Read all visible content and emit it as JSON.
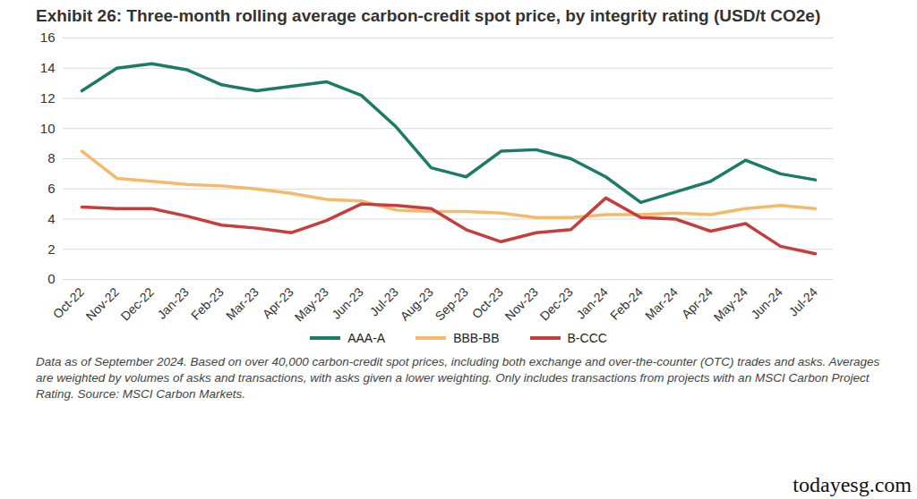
{
  "chart_data": {
    "type": "line",
    "title": "Exhibit 26: Three-month rolling average carbon-credit spot price, by integrity rating (USD/t CO2e)",
    "caption": "Data as of September 2024. Based on over 40,000 carbon-credit spot prices, including both exchange and over-the-counter (OTC) trades and asks. Averages are weighted by volumes of asks and transactions, with asks given a lower weighting. Only includes transactions from projects with an MSCI Carbon Project Rating. Source: MSCI Carbon Markets.",
    "watermark": "todayesg.com",
    "categories": [
      "Oct-22",
      "Nov-22",
      "Dec-22",
      "Jan-23",
      "Feb-23",
      "Mar-23",
      "Apr-23",
      "May-23",
      "Jun-23",
      "Jul-23",
      "Aug-23",
      "Sep-23",
      "Oct-23",
      "Nov-23",
      "Dec-23",
      "Jan-24",
      "Feb-24",
      "Mar-24",
      "Apr-24",
      "May-24",
      "Jun-24",
      "Jul-24"
    ],
    "series": [
      {
        "name": "AAA-A",
        "color": "#1b7a68",
        "values": [
          12.5,
          14.0,
          14.3,
          13.9,
          12.9,
          12.5,
          12.8,
          13.1,
          12.2,
          10.1,
          7.4,
          6.8,
          8.5,
          8.6,
          8.0,
          6.8,
          5.1,
          5.8,
          6.5,
          7.9,
          7.0,
          6.6
        ]
      },
      {
        "name": "BBB-BB",
        "color": "#f5b96a",
        "values": [
          8.5,
          6.7,
          6.5,
          6.3,
          6.2,
          6.0,
          5.7,
          5.3,
          5.2,
          4.6,
          4.5,
          4.5,
          4.4,
          4.1,
          4.1,
          4.3,
          4.3,
          4.4,
          4.3,
          4.7,
          4.9,
          4.7
        ]
      },
      {
        "name": "B-CCC",
        "color": "#c63d3d",
        "values": [
          4.8,
          4.7,
          4.7,
          4.2,
          3.6,
          3.4,
          3.1,
          3.9,
          5.0,
          4.9,
          4.7,
          3.3,
          2.5,
          3.1,
          3.3,
          5.4,
          4.1,
          4.0,
          3.2,
          3.7,
          2.2,
          1.7
        ]
      }
    ],
    "ylim": [
      0,
      16
    ],
    "yticks": [
      0,
      2,
      4,
      6,
      8,
      10,
      12,
      14,
      16
    ],
    "grid": true,
    "legend": "bottom"
  }
}
